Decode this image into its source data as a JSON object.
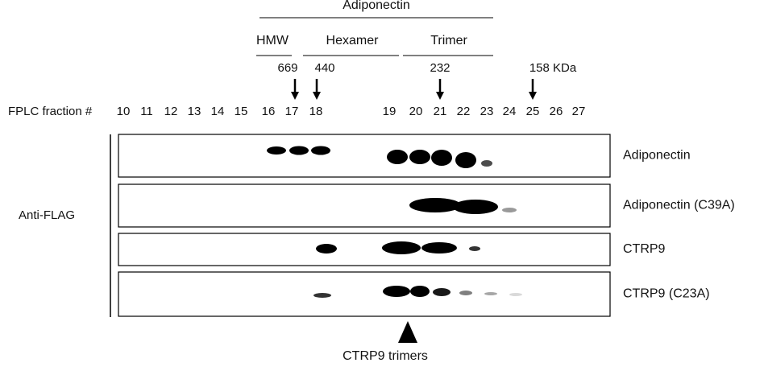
{
  "header": {
    "title": "Adiponectin",
    "groups": [
      "HMW",
      "Hexamer",
      "Trimer"
    ]
  },
  "markers": [
    "669",
    "440",
    "232",
    "158 KDa"
  ],
  "fractions": {
    "label": "FPLC fraction #",
    "numbers": [
      "10",
      "11",
      "12",
      "13",
      "14",
      "15",
      "16",
      "17",
      "18",
      "19",
      "20",
      "21",
      "22",
      "23",
      "24",
      "25",
      "26",
      "27"
    ]
  },
  "antibody": "Anti-FLAG",
  "lanes": [
    "Adiponectin",
    "Adiponectin (C39A)",
    "CTRP9",
    "CTRP9 (C23A)"
  ],
  "footer": "CTRP9 trimers"
}
